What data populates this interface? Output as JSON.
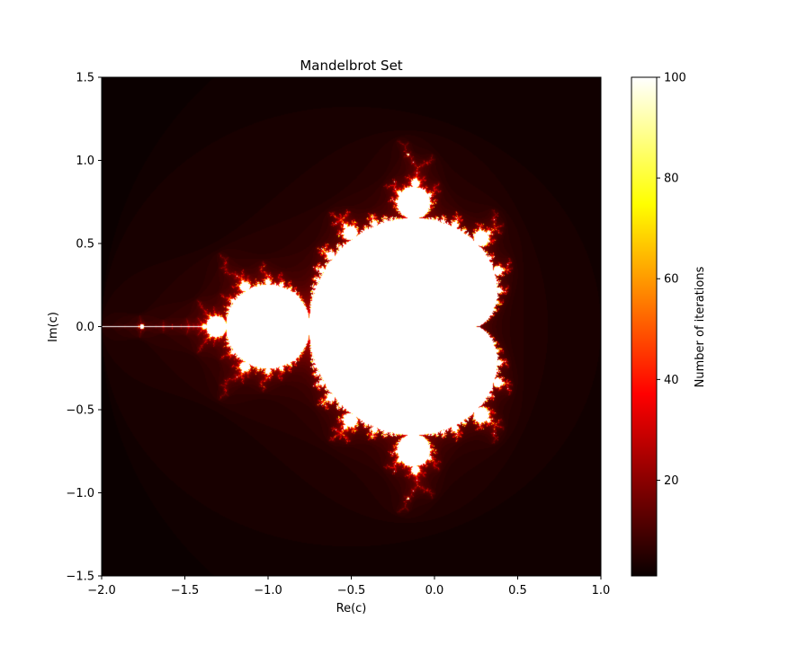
{
  "chart_data": {
    "type": "heatmap",
    "title": "Mandelbrot Set",
    "xlabel": "Re(c)",
    "ylabel": "Im(c)",
    "xlim": [
      -2.0,
      1.0
    ],
    "ylim": [
      -1.5,
      1.5
    ],
    "x_ticks": [
      -2.0,
      -1.5,
      -1.0,
      -0.5,
      0.0,
      0.5,
      1.0
    ],
    "x_tick_labels": [
      "−2.0",
      "−1.5",
      "−1.0",
      "−0.5",
      "0.0",
      "0.5",
      "1.0"
    ],
    "y_ticks": [
      -1.5,
      -1.0,
      -0.5,
      0.0,
      0.5,
      1.0,
      1.5
    ],
    "y_tick_labels": [
      "−1.5",
      "−1.0",
      "−0.5",
      "0.0",
      "0.5",
      "1.0",
      "1.5"
    ],
    "max_iterations": 100,
    "colormap": "hot",
    "colorbar": {
      "label": "Number of iterations",
      "range": [
        1,
        100
      ],
      "ticks": [
        20,
        40,
        60,
        80,
        100
      ],
      "tick_labels": [
        "20",
        "40",
        "60",
        "80",
        "100"
      ]
    },
    "grid": false
  }
}
